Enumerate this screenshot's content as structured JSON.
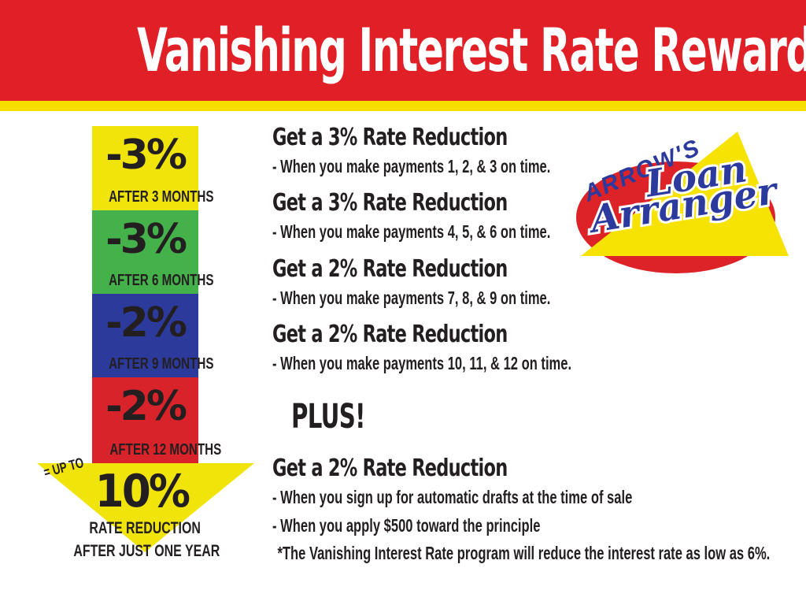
{
  "header": {
    "title": "Vanishing Interest Rate Rewards",
    "band_color": "#e11f26",
    "stripe_color": "#f6df00",
    "title_color": "#ffffff"
  },
  "chart": {
    "type": "infographic-arrow",
    "segments": [
      {
        "value": "-3%",
        "label": "AFTER 3 MONTHS",
        "color": "#f1e40a"
      },
      {
        "value": "-3%",
        "label": "AFTER 6 MONTHS",
        "color": "#45b14b"
      },
      {
        "value": "-2%",
        "label": "AFTER 9 MONTHS",
        "color": "#2c3a9c"
      },
      {
        "value": "-2%",
        "label": "AFTER 12 MONTHS",
        "color": "#d8232a"
      }
    ],
    "arrow": {
      "prefix": "= UP TO",
      "value": "10%",
      "caption_line1": "RATE REDUCTION",
      "caption_line2": "AFTER JUST ONE YEAR",
      "color": "#f1e40a"
    }
  },
  "sections": [
    {
      "heading": "Get a 3% Rate Reduction",
      "bullet": "- When you make payments 1, 2, & 3 on time."
    },
    {
      "heading": "Get a 3% Rate Reduction",
      "bullet": "- When you make payments 4, 5, & 6 on time."
    },
    {
      "heading": "Get a 2% Rate Reduction",
      "bullet": "- When you make payments 7, 8, & 9 on time."
    },
    {
      "heading": "Get a 2% Rate Reduction",
      "bullet": "- When you make payments 10, 11, & 12 on time."
    }
  ],
  "plus_label": "PLUS!",
  "final_section": {
    "heading": "Get a 2% Rate Reduction",
    "bullets": [
      "- When you sign up for automatic drafts at the time of sale",
      "- When you apply $500 toward the principle",
      "*The Vanishing Interest Rate program will reduce the interest rate as low as 6%."
    ]
  },
  "logo": {
    "owner": "ARROW'S",
    "script_line1": "Loan",
    "script_line2": "Arranger",
    "blue": "#2b3a9c",
    "red": "#dd2327",
    "yellow": "#f6e203"
  }
}
